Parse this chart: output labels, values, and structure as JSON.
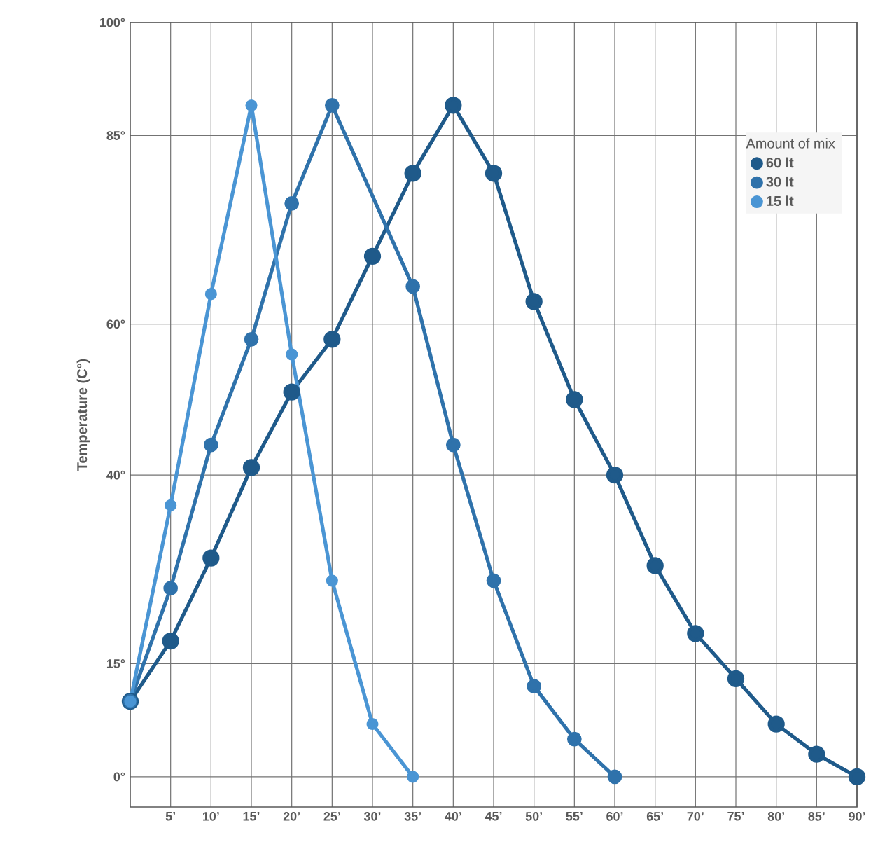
{
  "chart_data": {
    "type": "line",
    "ylabel": "Temperature (C°)",
    "legend_title": "Amount of mix",
    "x": [
      0,
      5,
      10,
      15,
      20,
      25,
      30,
      35,
      40,
      45,
      50,
      55,
      60,
      65,
      70,
      75,
      80,
      85,
      90
    ],
    "series": [
      {
        "name": "60 lt",
        "color": "#1f5a8a",
        "values": [
          10,
          18,
          29,
          41,
          51,
          58,
          69,
          80,
          89,
          80,
          63,
          50,
          40,
          28,
          19,
          13,
          7,
          3,
          0
        ]
      },
      {
        "name": "30 lt",
        "color": "#2f72ab",
        "x": [
          0,
          5,
          10,
          15,
          20,
          25,
          35,
          40,
          45,
          50,
          55,
          60
        ],
        "values": [
          10,
          25,
          44,
          58,
          76,
          89,
          65,
          44,
          26,
          12,
          5,
          0
        ]
      },
      {
        "name": "15 lt",
        "color": "#4a95d4",
        "x": [
          0,
          5,
          10,
          15,
          20,
          25,
          30,
          35
        ],
        "values": [
          10,
          36,
          64,
          89,
          56,
          26,
          7,
          0
        ]
      }
    ],
    "xlim": [
      0,
      90
    ],
    "xticks": [
      {
        "value": 5,
        "label": "5’"
      },
      {
        "value": 10,
        "label": "10’"
      },
      {
        "value": 15,
        "label": "15’"
      },
      {
        "value": 20,
        "label": "20’"
      },
      {
        "value": 25,
        "label": "25’"
      },
      {
        "value": 30,
        "label": "30’"
      },
      {
        "value": 35,
        "label": "35’"
      },
      {
        "value": 40,
        "label": "40’"
      },
      {
        "value": 45,
        "label": "45’"
      },
      {
        "value": 50,
        "label": "50’"
      },
      {
        "value": 55,
        "label": "55’"
      },
      {
        "value": 60,
        "label": "60’"
      },
      {
        "value": 65,
        "label": "65’"
      },
      {
        "value": 70,
        "label": "70’"
      },
      {
        "value": 75,
        "label": "75’"
      },
      {
        "value": 80,
        "label": "80’"
      },
      {
        "value": 85,
        "label": "85’"
      },
      {
        "value": 90,
        "label": "90’"
      }
    ],
    "ylim": [
      -4,
      100
    ],
    "yticks": [
      {
        "value": 0,
        "label": "0°"
      },
      {
        "value": 15,
        "label": "15°"
      },
      {
        "value": 40,
        "label": "40°"
      },
      {
        "value": 60,
        "label": "60°"
      },
      {
        "value": 85,
        "label": "85°"
      },
      {
        "value": 100,
        "label": "100°"
      }
    ],
    "grid": true,
    "legend": "top right",
    "marker": "circle",
    "line_style": "solid"
  }
}
